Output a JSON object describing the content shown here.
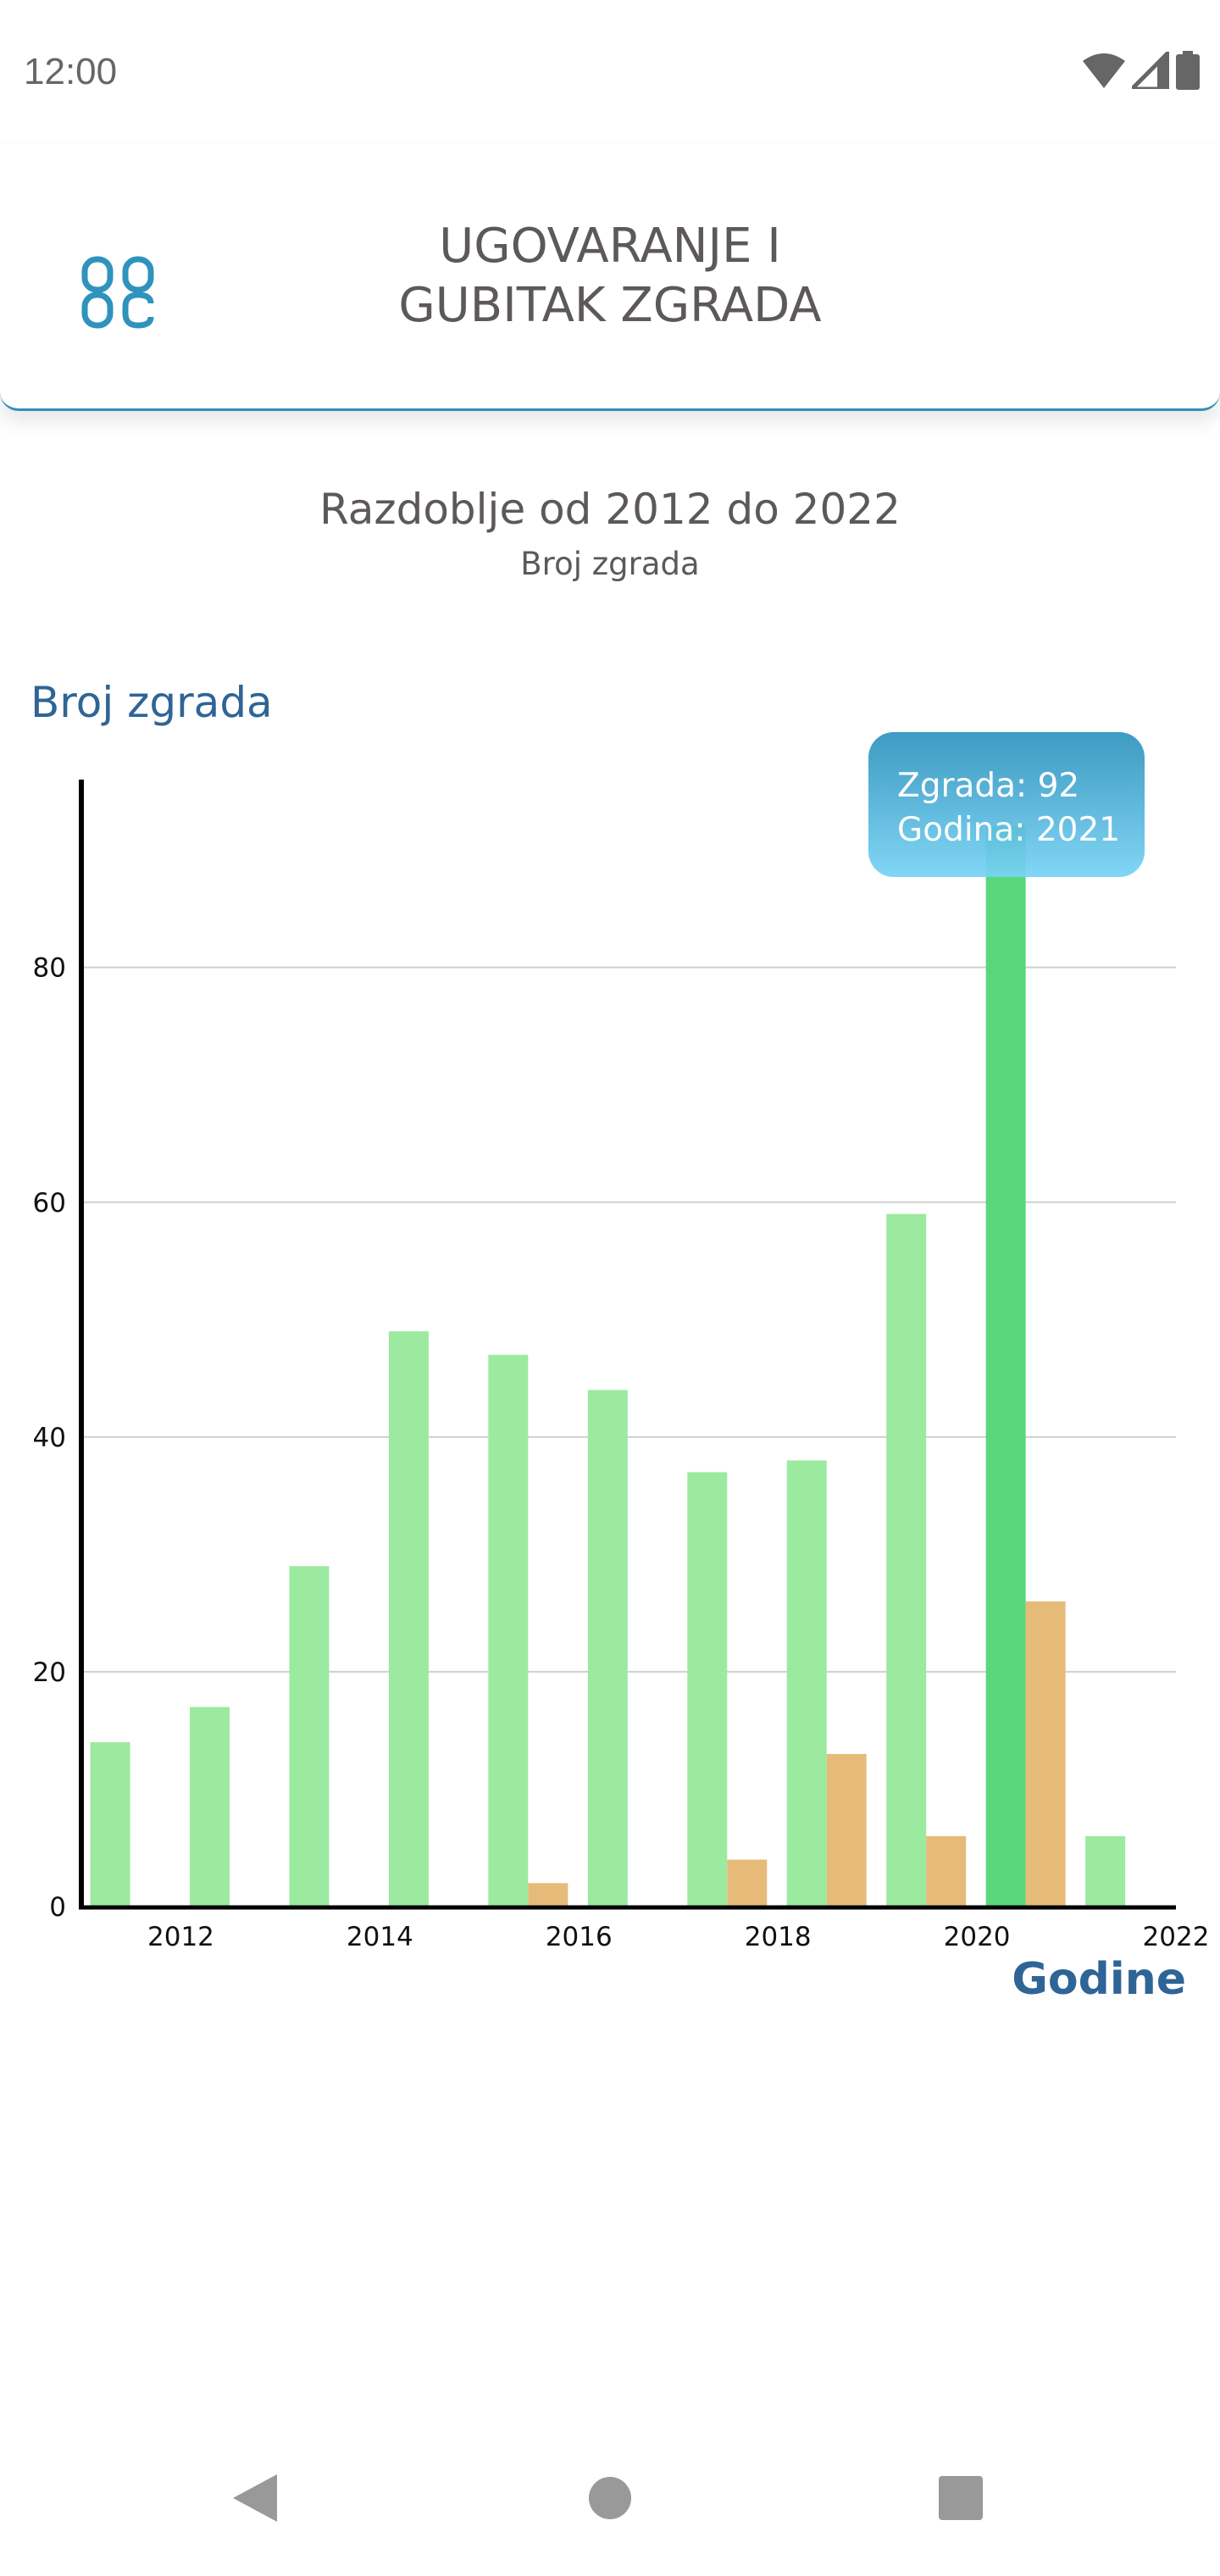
{
  "status_bar": {
    "time": "12:00",
    "icons": [
      "wifi-icon",
      "signal-icon",
      "battery-icon"
    ]
  },
  "header": {
    "title_line1": "UGOVARANJE I",
    "title_line2": "GUBITAK ZGRADA",
    "menu_icon": "grid-menu-icon"
  },
  "colors": {
    "green": "#9beaa0",
    "green_highlight": "#58d87a",
    "orange": "#e6bb7a",
    "accent": "#2f6496"
  },
  "tooltip": {
    "line1": "Zgrada: 92",
    "line2": "Godina: 2021"
  },
  "chart_data": {
    "type": "bar",
    "title": "Razdoblje od 2012 do 2022",
    "subtitle": "Broj zgrada",
    "xlabel": "Godine",
    "ylabel": "Broj zgrada",
    "categories": [
      2012,
      2013,
      2014,
      2015,
      2016,
      2017,
      2018,
      2019,
      2020,
      2021,
      2022
    ],
    "series": [
      {
        "name": "Ugovaranje",
        "color": "#9beaa0",
        "values": [
          14,
          17,
          29,
          49,
          47,
          44,
          37,
          38,
          59,
          92,
          6
        ]
      },
      {
        "name": "Gubitak",
        "color": "#e6bb7a",
        "values": [
          0,
          0,
          0,
          0,
          2,
          0,
          4,
          13,
          6,
          26,
          0
        ]
      }
    ],
    "highlighted": {
      "series": 0,
      "category": 2021
    },
    "xlim": [
      2011,
      2022
    ],
    "ylim": [
      0,
      96
    ],
    "xticks": [
      "2012",
      "2014",
      "2016",
      "2018",
      "2020",
      "2022"
    ],
    "yticks": [
      "0",
      "20",
      "40",
      "60",
      "80"
    ],
    "grid": true
  },
  "nav_bar": {
    "buttons": [
      "back",
      "home",
      "recents"
    ]
  }
}
